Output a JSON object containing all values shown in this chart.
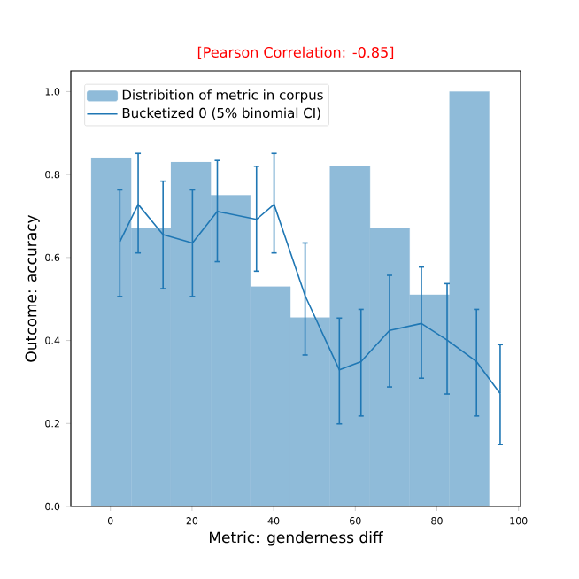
{
  "chart_data": {
    "type": "histogram",
    "title": "[Pearson Correlation: -0.85]",
    "xlabel": "Metric: genderness diff",
    "ylabel": "Outcome: accuracy",
    "series": [
      {
        "name": "Distribition of metric in corpus",
        "color": "#8fbbd9",
        "bins": [
          -4.7,
          5.1,
          14.8,
          24.6,
          34.3,
          44.1,
          53.8,
          63.6,
          73.3,
          83.1,
          92.8
        ],
        "values": [
          0.84,
          0.67,
          0.83,
          0.75,
          0.53,
          0.455,
          0.82,
          0.67,
          0.51,
          1.0
        ]
      },
      {
        "type": "line",
        "name": "Bucketized 0 (5% binomial CI)",
        "color": "#1f77b4",
        "x": [
          2.3,
          6.8,
          12.9,
          20.1,
          26.2,
          35.8,
          40.1,
          47.7,
          56.1,
          61.4,
          68.4,
          76.2,
          82.5,
          89.7,
          95.5
        ],
        "values": [
          0.638,
          0.728,
          0.655,
          0.635,
          0.711,
          0.692,
          0.728,
          0.508,
          0.329,
          0.349,
          0.424,
          0.441,
          0.401,
          0.349,
          0.272
        ],
        "errors": [
          [
            0.506,
            0.763
          ],
          [
            0.611,
            0.851
          ],
          [
            0.525,
            0.784
          ],
          [
            0.506,
            0.763
          ],
          [
            0.59,
            0.834
          ],
          [
            0.567,
            0.82
          ],
          [
            0.611,
            0.851
          ],
          [
            0.365,
            0.635
          ],
          [
            0.199,
            0.454
          ],
          [
            0.218,
            0.475
          ],
          [
            0.288,
            0.557
          ],
          [
            0.309,
            0.577
          ],
          [
            0.271,
            0.537
          ],
          [
            0.218,
            0.475
          ],
          [
            0.149,
            0.39
          ]
        ]
      }
    ],
    "xlim": [
      -9.7,
      100.5
    ],
    "ylim": [
      0,
      1.05
    ],
    "xticks": [
      0,
      20,
      40,
      60,
      80,
      100
    ],
    "yticks": [
      {
        "value": 0,
        "label": "0.0"
      },
      {
        "value": 0.2,
        "label": "0.2"
      },
      {
        "value": 0.4,
        "label": "0.4"
      },
      {
        "value": 0.6,
        "label": "0.6"
      },
      {
        "value": 0.8,
        "label": "0.8"
      },
      {
        "value": 1.0,
        "label": "1.0"
      }
    ],
    "legend": "top left",
    "grid": false,
    "marker": "none",
    "line_style": "solid"
  }
}
